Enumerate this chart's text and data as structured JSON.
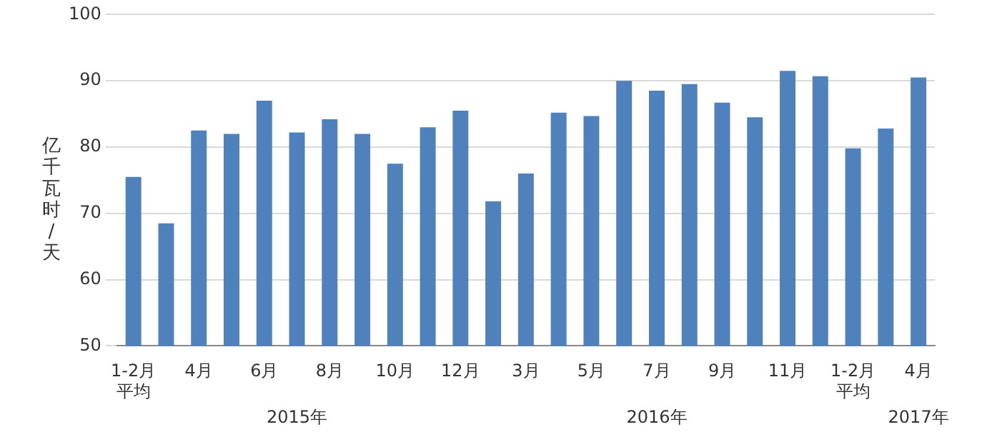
{
  "chart_data": {
    "type": "bar",
    "ylabel": "亿千瓦时/天",
    "categories": [
      "1-2月平均",
      null,
      "4月",
      null,
      "6月",
      null,
      "8月",
      null,
      "10月",
      null,
      "12月",
      null,
      "3月",
      null,
      "5月",
      null,
      "7月",
      null,
      "9月",
      null,
      "11月",
      null,
      "1-2月平均",
      null,
      "4月"
    ],
    "values": [
      75.5,
      68.5,
      82.5,
      82,
      87,
      82.2,
      84.2,
      82,
      77.5,
      83,
      85.5,
      71.8,
      76,
      85.2,
      84.7,
      90,
      88.5,
      89.5,
      86.7,
      84.5,
      91.5,
      90.7,
      79.8,
      82.8,
      90.5
    ],
    "color": "#4f81bd",
    "ylim": [
      50,
      100
    ],
    "yticks": [
      50,
      60,
      70,
      80,
      90,
      100
    ],
    "grid": "y",
    "legend": false,
    "annotations": [
      "2015年",
      "2016年",
      "2017年"
    ]
  }
}
